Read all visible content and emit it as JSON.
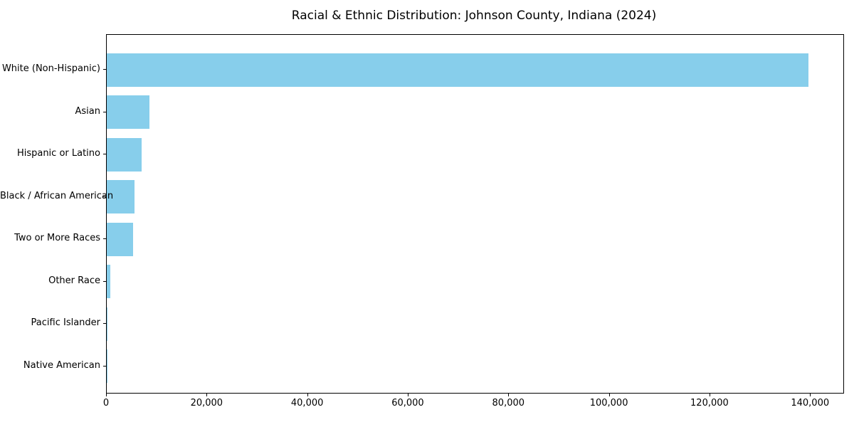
{
  "chart_data": {
    "type": "bar",
    "orientation": "horizontal",
    "title": "Racial & Ethnic Distribution: Johnson County, Indiana (2024)",
    "categories": [
      "White (Non-Hispanic)",
      "Asian",
      "Hispanic or Latino",
      "Black / African American",
      "Two or More Races",
      "Other Race",
      "Pacific Islander",
      "Native American"
    ],
    "values": [
      139500,
      8500,
      7000,
      5500,
      5300,
      650,
      100,
      50
    ],
    "xlabel": "",
    "ylabel": "",
    "xlim": [
      0,
      146475
    ],
    "xticks": [
      0,
      20000,
      40000,
      60000,
      80000,
      100000,
      120000,
      140000
    ],
    "xtick_labels": [
      "0",
      "20,000",
      "40,000",
      "60,000",
      "80,000",
      "100,000",
      "120,000",
      "140,000"
    ],
    "bar_color": "#87CEEB",
    "text_color": "#000000",
    "grid": false,
    "legend": false
  }
}
